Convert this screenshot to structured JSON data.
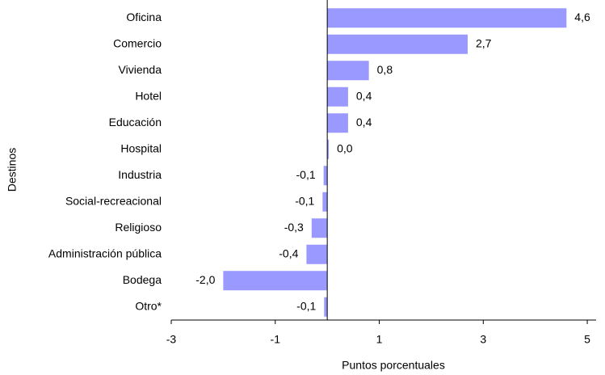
{
  "chart_data": {
    "type": "bar",
    "orientation": "horizontal",
    "x_label": "Puntos porcentuales",
    "y_label": "Destinos",
    "categories": [
      "Oficina",
      "Comercio",
      "Vivienda",
      "Hotel",
      "Educación",
      "Hospital",
      "Industria",
      "Social-recreacional",
      "Religioso",
      "Administración pública",
      "Bodega",
      "Otro*"
    ],
    "values": [
      4.6,
      2.7,
      0.8,
      0.4,
      0.4,
      0.03,
      -0.07,
      -0.09,
      -0.3,
      -0.4,
      -2.0,
      -0.06
    ],
    "value_labels": [
      "4,6",
      "2,7",
      "0,8",
      "0,4",
      "0,4",
      "0,0",
      "-0,1",
      "-0,1",
      "-0,3",
      "-0,4",
      "-2,0",
      "-0,1"
    ],
    "color": "#9999ff",
    "xlim": [
      -3,
      5.17
    ],
    "xticks": [
      -3,
      -1,
      1,
      3,
      5
    ]
  }
}
